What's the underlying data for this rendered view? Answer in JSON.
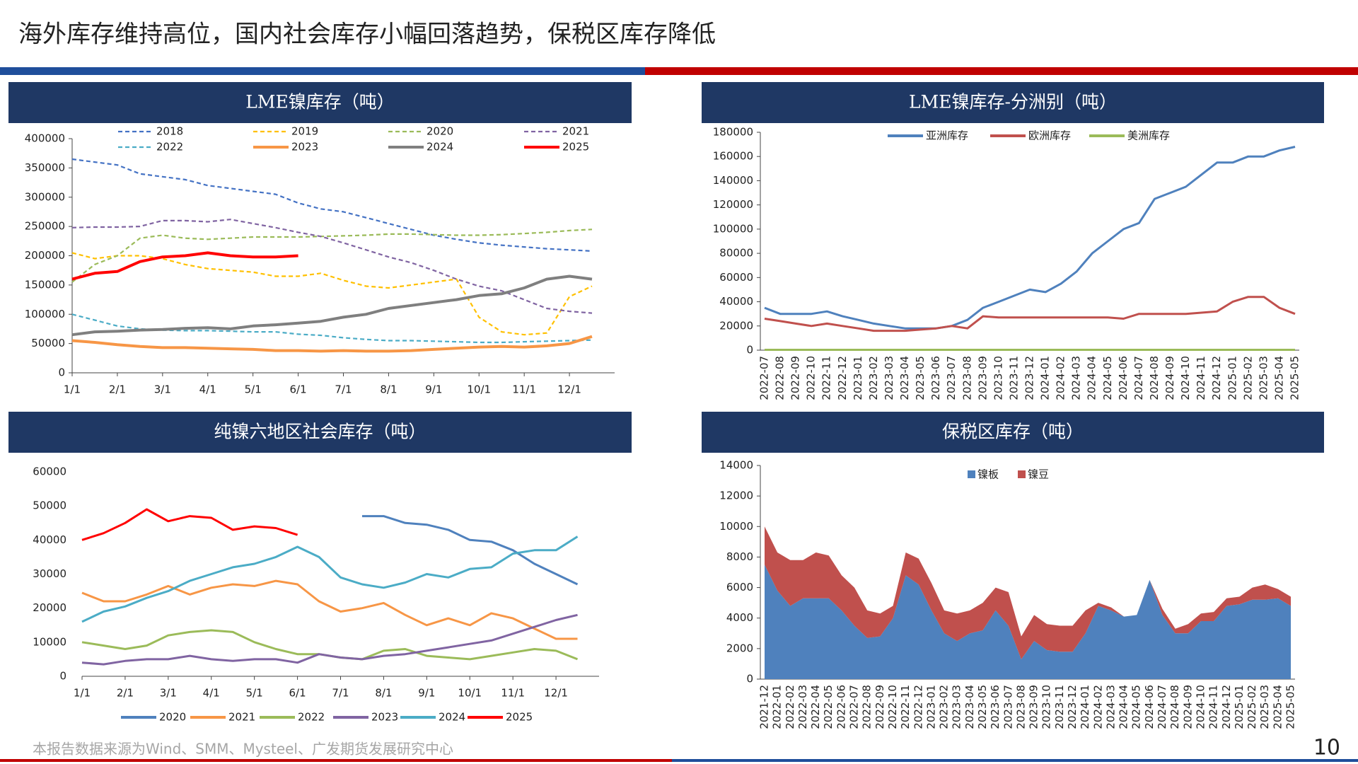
{
  "page": {
    "title": "海外库存维持高位，国内社会库存小幅回落趋势，保税区库存降低",
    "source": "本报告数据来源为Wind、SMM、Mysteel、广发期货发展研究中心",
    "page_number": "10"
  },
  "chart_data": [
    {
      "type": "line",
      "title": "LME镍库存（吨）",
      "legend": "top",
      "categories": [
        "1/1",
        null,
        "2/1",
        null,
        "3/1",
        null,
        "4/1",
        null,
        "5/1",
        null,
        "6/1",
        null,
        "7/1",
        null,
        "8/1",
        null,
        "9/1",
        null,
        "10/1",
        null,
        "11/1",
        null,
        "12/1",
        null
      ],
      "ylim": [
        0,
        400000
      ],
      "yticks": [
        0,
        50000,
        100000,
        150000,
        200000,
        250000,
        300000,
        350000,
        400000
      ],
      "series": [
        {
          "name": "2018",
          "color": "#4472c4",
          "style": "dashed",
          "values": [
            365000,
            360000,
            355000,
            340000,
            335000,
            330000,
            320000,
            315000,
            310000,
            305000,
            290000,
            280000,
            275000,
            265000,
            255000,
            245000,
            235000,
            228000,
            222000,
            218000,
            215000,
            212000,
            210000,
            208000
          ]
        },
        {
          "name": "2019",
          "color": "#ffc000",
          "style": "dashed",
          "values": [
            205000,
            195000,
            200000,
            200000,
            195000,
            185000,
            178000,
            175000,
            172000,
            165000,
            165000,
            170000,
            158000,
            148000,
            145000,
            150000,
            155000,
            160000,
            95000,
            70000,
            65000,
            68000,
            130000,
            148000
          ]
        },
        {
          "name": "2020",
          "color": "#9bbb59",
          "style": "dashed",
          "values": [
            155000,
            185000,
            200000,
            230000,
            235000,
            230000,
            228000,
            230000,
            232000,
            232000,
            232000,
            233000,
            234000,
            235000,
            237000,
            237000,
            236000,
            235000,
            235000,
            236000,
            238000,
            240000,
            243000,
            245000
          ]
        },
        {
          "name": "2021",
          "color": "#8064a2",
          "style": "dashed",
          "values": [
            248000,
            249000,
            249000,
            250000,
            260000,
            260000,
            258000,
            262000,
            255000,
            248000,
            240000,
            233000,
            222000,
            210000,
            198000,
            188000,
            175000,
            160000,
            148000,
            140000,
            125000,
            110000,
            105000,
            102000
          ]
        },
        {
          "name": "2022",
          "color": "#4bacc6",
          "style": "dashed",
          "values": [
            100000,
            90000,
            80000,
            75000,
            73000,
            72000,
            72000,
            71000,
            70000,
            70000,
            66000,
            64000,
            60000,
            57000,
            55000,
            55000,
            54000,
            53000,
            52000,
            52000,
            53000,
            54000,
            55000,
            56000
          ]
        },
        {
          "name": "2023",
          "color": "#f79646",
          "style": "solid",
          "values": [
            55000,
            52000,
            48000,
            45000,
            43000,
            43000,
            42000,
            41000,
            40000,
            38000,
            38000,
            37000,
            38000,
            37000,
            37000,
            38000,
            40000,
            42000,
            44000,
            45000,
            44000,
            46000,
            50000,
            62000
          ]
        },
        {
          "name": "2024",
          "color": "#7f7f7f",
          "style": "solid",
          "values": [
            65000,
            70000,
            71000,
            73000,
            74000,
            76000,
            77000,
            75000,
            80000,
            82000,
            85000,
            88000,
            95000,
            100000,
            110000,
            115000,
            120000,
            125000,
            132000,
            135000,
            145000,
            160000,
            165000,
            160000
          ]
        },
        {
          "name": "2025",
          "color": "#ff0000",
          "style": "solid",
          "values": [
            160000,
            170000,
            173000,
            190000,
            198000,
            200000,
            205000,
            200000,
            198000,
            198000,
            200000,
            null,
            null,
            null,
            null,
            null,
            null,
            null,
            null,
            null,
            null,
            null,
            null,
            null
          ]
        }
      ]
    },
    {
      "type": "line",
      "title": "LME镍库存-分洲别（吨）",
      "legend": "top",
      "categories": [
        "2022-07",
        "2022-08",
        "2022-09",
        "2022-10",
        "2022-11",
        "2022-12",
        "2023-01",
        "2023-02",
        "2023-03",
        "2023-04",
        "2023-05",
        "2023-06",
        "2023-07",
        "2023-08",
        "2023-09",
        "2023-10",
        "2023-11",
        "2023-12",
        "2024-01",
        "2024-02",
        "2024-03",
        "2024-04",
        "2024-05",
        "2024-06",
        "2024-07",
        "2024-08",
        "2024-09",
        "2024-10",
        "2024-11",
        "2024-12",
        "2025-01",
        "2025-02",
        "2025-03",
        "2025-04",
        "2025-05"
      ],
      "ylim": [
        0,
        180000
      ],
      "yticks": [
        0,
        20000,
        40000,
        60000,
        80000,
        100000,
        120000,
        140000,
        160000,
        180000
      ],
      "series": [
        {
          "name": "亚洲库存",
          "color": "#4f81bd",
          "style": "solid",
          "values": [
            35000,
            30000,
            30000,
            30000,
            32000,
            28000,
            25000,
            22000,
            20000,
            18000,
            18000,
            18000,
            20000,
            25000,
            35000,
            40000,
            45000,
            50000,
            48000,
            55000,
            65000,
            80000,
            90000,
            100000,
            105000,
            125000,
            130000,
            135000,
            145000,
            155000,
            155000,
            160000,
            160000,
            165000,
            168000
          ]
        },
        {
          "name": "欧洲库存",
          "color": "#c0504d",
          "style": "solid",
          "values": [
            26000,
            24000,
            22000,
            20000,
            22000,
            20000,
            18000,
            16000,
            16000,
            16000,
            17000,
            18000,
            20000,
            18000,
            28000,
            27000,
            27000,
            27000,
            27000,
            27000,
            27000,
            27000,
            27000,
            26000,
            30000,
            30000,
            30000,
            30000,
            31000,
            32000,
            40000,
            44000,
            44000,
            35000,
            30000
          ]
        },
        {
          "name": "美洲库存",
          "color": "#9bbb59",
          "style": "solid",
          "values": [
            300,
            300,
            300,
            300,
            300,
            300,
            300,
            300,
            300,
            300,
            300,
            300,
            300,
            300,
            300,
            300,
            300,
            300,
            300,
            300,
            300,
            300,
            300,
            300,
            300,
            300,
            300,
            300,
            300,
            300,
            300,
            300,
            300,
            300,
            300
          ]
        }
      ]
    },
    {
      "type": "line",
      "title": "纯镍六地区社会库存（吨）",
      "legend": "bottom",
      "categories": [
        "1/1",
        null,
        "2/1",
        null,
        "3/1",
        null,
        "4/1",
        null,
        "5/1",
        null,
        "6/1",
        null,
        "7/1",
        null,
        "8/1",
        null,
        "9/1",
        null,
        "10/1",
        null,
        "11/1",
        null,
        "12/1",
        null
      ],
      "ylim": [
        0,
        60000
      ],
      "yticks": [
        0,
        10000,
        20000,
        30000,
        40000,
        50000,
        60000
      ],
      "series": [
        {
          "name": "2020",
          "color": "#4f81bd",
          "style": "solid",
          "values": [
            null,
            null,
            null,
            null,
            null,
            null,
            null,
            null,
            null,
            null,
            null,
            null,
            null,
            47000,
            47000,
            45000,
            44500,
            43000,
            40000,
            39500,
            37000,
            33000,
            30000,
            27000
          ]
        },
        {
          "name": "2021",
          "color": "#f79646",
          "style": "solid",
          "values": [
            24500,
            22000,
            22000,
            24000,
            26500,
            24000,
            26000,
            27000,
            26500,
            28000,
            27000,
            22000,
            19000,
            20000,
            21500,
            18000,
            15000,
            17000,
            15000,
            18500,
            17000,
            14000,
            11000,
            11000
          ]
        },
        {
          "name": "2022",
          "color": "#9bbb59",
          "style": "solid",
          "values": [
            10000,
            9000,
            8000,
            9000,
            12000,
            13000,
            13500,
            13000,
            10000,
            8000,
            6500,
            6500,
            5500,
            5000,
            7500,
            8000,
            6000,
            5500,
            5000,
            6000,
            7000,
            8000,
            7500,
            5000
          ]
        },
        {
          "name": "2023",
          "color": "#8064a2",
          "style": "solid",
          "values": [
            4000,
            3500,
            4500,
            5000,
            5000,
            6000,
            5000,
            4500,
            5000,
            5000,
            4000,
            6500,
            5500,
            5000,
            6000,
            6500,
            7500,
            8500,
            9500,
            10500,
            12500,
            14500,
            16500,
            18000
          ]
        },
        {
          "name": "2024",
          "color": "#4bacc6",
          "style": "solid",
          "values": [
            16000,
            19000,
            20500,
            23000,
            25000,
            28000,
            30000,
            32000,
            33000,
            35000,
            38000,
            35000,
            29000,
            27000,
            26000,
            27500,
            30000,
            29000,
            31500,
            32000,
            36000,
            37000,
            37000,
            41000
          ]
        },
        {
          "name": "2025",
          "color": "#ff0000",
          "style": "solid",
          "values": [
            40000,
            42000,
            45000,
            49000,
            45500,
            47000,
            46500,
            43000,
            44000,
            43500,
            41500,
            null,
            null,
            null,
            null,
            null,
            null,
            null,
            null,
            null,
            null,
            null,
            null,
            null
          ]
        }
      ]
    },
    {
      "type": "area",
      "title": "保税区库存（吨）",
      "legend": "top",
      "stacked": true,
      "categories": [
        "2021-12",
        "2022-01",
        "2022-02",
        "2022-03",
        "2022-04",
        "2022-05",
        "2022-06",
        "2022-07",
        "2022-08",
        "2022-09",
        "2022-10",
        "2022-11",
        "2022-12",
        "2023-01",
        "2023-02",
        "2023-03",
        "2023-04",
        "2023-05",
        "2023-06",
        "2023-07",
        "2023-08",
        "2023-09",
        "2023-10",
        "2023-11",
        "2023-12",
        "2024-01",
        "2024-02",
        "2024-03",
        "2024-04",
        "2024-05",
        "2024-06",
        "2024-07",
        "2024-08",
        "2024-09",
        "2024-10",
        "2024-11",
        "2024-12",
        "2025-01",
        "2025-02",
        "2025-03",
        "2025-04",
        "2025-05"
      ],
      "ylim": [
        0,
        14000
      ],
      "yticks": [
        0,
        2000,
        4000,
        6000,
        8000,
        10000,
        12000,
        14000
      ],
      "series": [
        {
          "name": "镍板",
          "color": "#4f81bd",
          "values": [
            7500,
            5800,
            4800,
            5300,
            5300,
            5300,
            4500,
            3500,
            2700,
            2800,
            4000,
            6800,
            6200,
            4500,
            3000,
            2500,
            3000,
            3200,
            4500,
            3500,
            1300,
            2500,
            1900,
            1800,
            1800,
            3000,
            4800,
            4500,
            4100,
            4200,
            6500,
            4200,
            3000,
            3000,
            3800,
            3800,
            4800,
            4900,
            5200,
            5200,
            5300,
            4800
          ]
        },
        {
          "name": "镍豆",
          "color": "#c0504d",
          "values": [
            2500,
            2500,
            3000,
            2500,
            3000,
            2800,
            2300,
            2500,
            1800,
            1500,
            800,
            1500,
            1700,
            1800,
            1500,
            1800,
            1500,
            1800,
            1500,
            2200,
            1500,
            1700,
            1700,
            1700,
            1700,
            1500,
            200,
            200,
            0,
            0,
            0,
            400,
            300,
            600,
            500,
            600,
            500,
            500,
            800,
            1000,
            600,
            600
          ]
        }
      ]
    }
  ]
}
